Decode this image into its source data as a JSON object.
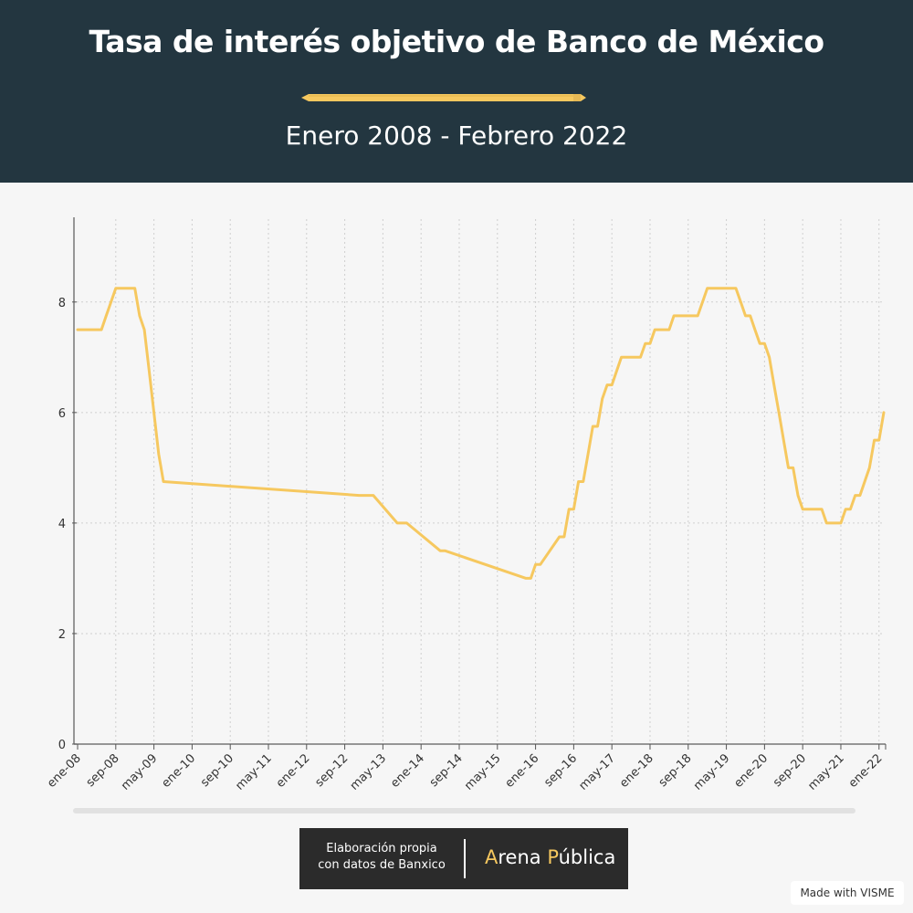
{
  "header": {
    "title": "Tasa de interés objetivo de Banco de México",
    "subtitle": "Enero 2008 - Febrero 2022"
  },
  "credit": {
    "line1": "Elaboración propia",
    "line2": "con datos de Banxico",
    "brand_part1": "A",
    "brand_part2": "rena ",
    "brand_part3": "P",
    "brand_part4": "ública"
  },
  "watermark": "Made with VISME",
  "colors": {
    "header_bg": "#233640",
    "line": "#f6c85f",
    "background": "#f6f6f6"
  },
  "chart_data": {
    "type": "line",
    "title": "",
    "xlabel": "",
    "ylabel": "",
    "ylim": [
      0,
      9.5
    ],
    "yticks": [
      0,
      2,
      4,
      6,
      8
    ],
    "grid": true,
    "legend": "none",
    "x_range": [
      "2008-01",
      "2022-02"
    ],
    "x_tick_labels": [
      "ene-08",
      "sep-08",
      "may-09",
      "ene-10",
      "sep-10",
      "may-11",
      "ene-12",
      "sep-12",
      "may-13",
      "ene-14",
      "sep-14",
      "may-15",
      "ene-16",
      "sep-16",
      "may-17",
      "ene-18",
      "sep-18",
      "may-19",
      "ene-20",
      "sep-20",
      "may-21",
      "ene-22"
    ],
    "series": [
      {
        "x": [
          "2008-01",
          "2008-02",
          "2008-03",
          "2008-04",
          "2008-05",
          "2008-06",
          "2008-07",
          "2008-08",
          "2008-09",
          "2008-10",
          "2008-11",
          "2008-12",
          "2009-01",
          "2009-02",
          "2009-03",
          "2009-04",
          "2009-05",
          "2009-06",
          "2009-07",
          "2012-12",
          "2013-01",
          "2013-03",
          "2013-08",
          "2013-09",
          "2013-10",
          "2014-05",
          "2014-06",
          "2015-11",
          "2015-12",
          "2016-01",
          "2016-02",
          "2016-06",
          "2016-07",
          "2016-08",
          "2016-09",
          "2016-10",
          "2016-11",
          "2016-12",
          "2017-01",
          "2017-02",
          "2017-03",
          "2017-04",
          "2017-05",
          "2017-06",
          "2017-07",
          "2017-11",
          "2017-12",
          "2018-01",
          "2018-02",
          "2018-05",
          "2018-06",
          "2018-11",
          "2018-12",
          "2019-01",
          "2019-07",
          "2019-08",
          "2019-09",
          "2019-10",
          "2019-11",
          "2019-12",
          "2020-01",
          "2020-02",
          "2020-03",
          "2020-04",
          "2020-05",
          "2020-06",
          "2020-07",
          "2020-08",
          "2020-09",
          "2020-10",
          "2021-01",
          "2021-02",
          "2021-05",
          "2021-06",
          "2021-07",
          "2021-08",
          "2021-09",
          "2021-10",
          "2021-11",
          "2021-12",
          "2022-01",
          "2022-02"
        ],
        "values": [
          7.5,
          7.5,
          7.5,
          7.5,
          7.5,
          7.5,
          7.75,
          8.0,
          8.25,
          8.25,
          8.25,
          8.25,
          8.25,
          7.75,
          7.5,
          6.75,
          6.0,
          5.25,
          4.75,
          4.5,
          4.5,
          4.5,
          4.0,
          4.0,
          4.0,
          3.5,
          3.5,
          3.0,
          3.0,
          3.25,
          3.25,
          3.75,
          3.75,
          4.25,
          4.25,
          4.75,
          4.75,
          5.25,
          5.75,
          5.75,
          6.25,
          6.5,
          6.5,
          6.75,
          7.0,
          7.0,
          7.25,
          7.25,
          7.5,
          7.5,
          7.75,
          7.75,
          8.0,
          8.25,
          8.25,
          8.0,
          7.75,
          7.75,
          7.5,
          7.25,
          7.25,
          7.0,
          6.5,
          6.0,
          5.5,
          5.0,
          5.0,
          4.5,
          4.25,
          4.25,
          4.25,
          4.0,
          4.0,
          4.25,
          4.25,
          4.5,
          4.5,
          4.75,
          5.0,
          5.5,
          5.5,
          6.0
        ]
      }
    ]
  }
}
